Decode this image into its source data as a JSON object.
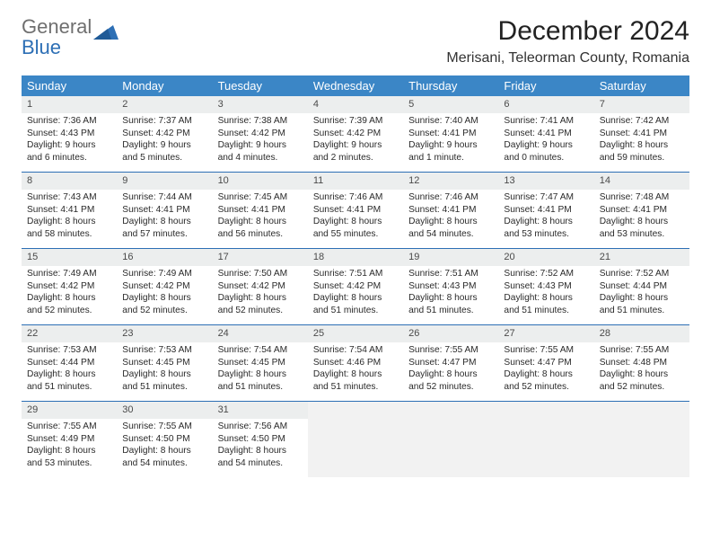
{
  "brand": {
    "word1": "General",
    "word2": "Blue"
  },
  "title": "December 2024",
  "location": "Merisani, Teleorman County, Romania",
  "colors": {
    "header_bg": "#3b86c6",
    "week_rule": "#2d6fb5",
    "daynum_bg": "#eceeee",
    "logo_gray": "#6f6f6f",
    "logo_blue": "#2d6fb5"
  },
  "day_names": [
    "Sunday",
    "Monday",
    "Tuesday",
    "Wednesday",
    "Thursday",
    "Friday",
    "Saturday"
  ],
  "weeks": [
    [
      {
        "n": "1",
        "sr": "Sunrise: 7:36 AM",
        "ss": "Sunset: 4:43 PM",
        "dl": "Daylight: 9 hours and 6 minutes."
      },
      {
        "n": "2",
        "sr": "Sunrise: 7:37 AM",
        "ss": "Sunset: 4:42 PM",
        "dl": "Daylight: 9 hours and 5 minutes."
      },
      {
        "n": "3",
        "sr": "Sunrise: 7:38 AM",
        "ss": "Sunset: 4:42 PM",
        "dl": "Daylight: 9 hours and 4 minutes."
      },
      {
        "n": "4",
        "sr": "Sunrise: 7:39 AM",
        "ss": "Sunset: 4:42 PM",
        "dl": "Daylight: 9 hours and 2 minutes."
      },
      {
        "n": "5",
        "sr": "Sunrise: 7:40 AM",
        "ss": "Sunset: 4:41 PM",
        "dl": "Daylight: 9 hours and 1 minute."
      },
      {
        "n": "6",
        "sr": "Sunrise: 7:41 AM",
        "ss": "Sunset: 4:41 PM",
        "dl": "Daylight: 9 hours and 0 minutes."
      },
      {
        "n": "7",
        "sr": "Sunrise: 7:42 AM",
        "ss": "Sunset: 4:41 PM",
        "dl": "Daylight: 8 hours and 59 minutes."
      }
    ],
    [
      {
        "n": "8",
        "sr": "Sunrise: 7:43 AM",
        "ss": "Sunset: 4:41 PM",
        "dl": "Daylight: 8 hours and 58 minutes."
      },
      {
        "n": "9",
        "sr": "Sunrise: 7:44 AM",
        "ss": "Sunset: 4:41 PM",
        "dl": "Daylight: 8 hours and 57 minutes."
      },
      {
        "n": "10",
        "sr": "Sunrise: 7:45 AM",
        "ss": "Sunset: 4:41 PM",
        "dl": "Daylight: 8 hours and 56 minutes."
      },
      {
        "n": "11",
        "sr": "Sunrise: 7:46 AM",
        "ss": "Sunset: 4:41 PM",
        "dl": "Daylight: 8 hours and 55 minutes."
      },
      {
        "n": "12",
        "sr": "Sunrise: 7:46 AM",
        "ss": "Sunset: 4:41 PM",
        "dl": "Daylight: 8 hours and 54 minutes."
      },
      {
        "n": "13",
        "sr": "Sunrise: 7:47 AM",
        "ss": "Sunset: 4:41 PM",
        "dl": "Daylight: 8 hours and 53 minutes."
      },
      {
        "n": "14",
        "sr": "Sunrise: 7:48 AM",
        "ss": "Sunset: 4:41 PM",
        "dl": "Daylight: 8 hours and 53 minutes."
      }
    ],
    [
      {
        "n": "15",
        "sr": "Sunrise: 7:49 AM",
        "ss": "Sunset: 4:42 PM",
        "dl": "Daylight: 8 hours and 52 minutes."
      },
      {
        "n": "16",
        "sr": "Sunrise: 7:49 AM",
        "ss": "Sunset: 4:42 PM",
        "dl": "Daylight: 8 hours and 52 minutes."
      },
      {
        "n": "17",
        "sr": "Sunrise: 7:50 AM",
        "ss": "Sunset: 4:42 PM",
        "dl": "Daylight: 8 hours and 52 minutes."
      },
      {
        "n": "18",
        "sr": "Sunrise: 7:51 AM",
        "ss": "Sunset: 4:42 PM",
        "dl": "Daylight: 8 hours and 51 minutes."
      },
      {
        "n": "19",
        "sr": "Sunrise: 7:51 AM",
        "ss": "Sunset: 4:43 PM",
        "dl": "Daylight: 8 hours and 51 minutes."
      },
      {
        "n": "20",
        "sr": "Sunrise: 7:52 AM",
        "ss": "Sunset: 4:43 PM",
        "dl": "Daylight: 8 hours and 51 minutes."
      },
      {
        "n": "21",
        "sr": "Sunrise: 7:52 AM",
        "ss": "Sunset: 4:44 PM",
        "dl": "Daylight: 8 hours and 51 minutes."
      }
    ],
    [
      {
        "n": "22",
        "sr": "Sunrise: 7:53 AM",
        "ss": "Sunset: 4:44 PM",
        "dl": "Daylight: 8 hours and 51 minutes."
      },
      {
        "n": "23",
        "sr": "Sunrise: 7:53 AM",
        "ss": "Sunset: 4:45 PM",
        "dl": "Daylight: 8 hours and 51 minutes."
      },
      {
        "n": "24",
        "sr": "Sunrise: 7:54 AM",
        "ss": "Sunset: 4:45 PM",
        "dl": "Daylight: 8 hours and 51 minutes."
      },
      {
        "n": "25",
        "sr": "Sunrise: 7:54 AM",
        "ss": "Sunset: 4:46 PM",
        "dl": "Daylight: 8 hours and 51 minutes."
      },
      {
        "n": "26",
        "sr": "Sunrise: 7:55 AM",
        "ss": "Sunset: 4:47 PM",
        "dl": "Daylight: 8 hours and 52 minutes."
      },
      {
        "n": "27",
        "sr": "Sunrise: 7:55 AM",
        "ss": "Sunset: 4:47 PM",
        "dl": "Daylight: 8 hours and 52 minutes."
      },
      {
        "n": "28",
        "sr": "Sunrise: 7:55 AM",
        "ss": "Sunset: 4:48 PM",
        "dl": "Daylight: 8 hours and 52 minutes."
      }
    ],
    [
      {
        "n": "29",
        "sr": "Sunrise: 7:55 AM",
        "ss": "Sunset: 4:49 PM",
        "dl": "Daylight: 8 hours and 53 minutes."
      },
      {
        "n": "30",
        "sr": "Sunrise: 7:55 AM",
        "ss": "Sunset: 4:50 PM",
        "dl": "Daylight: 8 hours and 54 minutes."
      },
      {
        "n": "31",
        "sr": "Sunrise: 7:56 AM",
        "ss": "Sunset: 4:50 PM",
        "dl": "Daylight: 8 hours and 54 minutes."
      },
      null,
      null,
      null,
      null
    ]
  ]
}
